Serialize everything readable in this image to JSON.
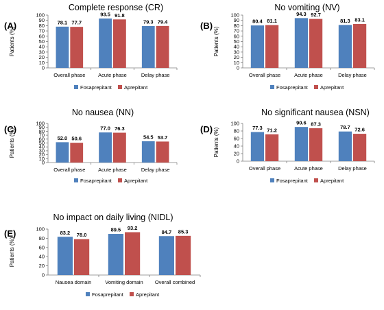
{
  "colors": {
    "fosaprepitant": "#4f81bd",
    "aprepitant": "#c0504d",
    "axis": "#7f7f7f"
  },
  "chart_data": [
    {
      "type": "bar",
      "panel": "(A)",
      "title": "Complete response (CR)",
      "ylabel": "Patients (%)",
      "ylim": [
        0,
        100
      ],
      "yticks": [
        0,
        10,
        20,
        30,
        40,
        50,
        60,
        70,
        80,
        90,
        100
      ],
      "categories": [
        "Overall phase",
        "Acute phase",
        "Delay phase"
      ],
      "series": [
        {
          "name": "Fosaprepitant",
          "values": [
            78.1,
            93.5,
            79.3
          ],
          "labels": [
            "78.1",
            "93.5",
            "79.3"
          ]
        },
        {
          "name": "Aprepitant",
          "values": [
            77.7,
            91.8,
            79.4
          ],
          "labels": [
            "77.7",
            "91.8",
            "79.4"
          ]
        }
      ],
      "legend": "bottom"
    },
    {
      "type": "bar",
      "panel": "(B)",
      "title": "No vomiting (NV)",
      "ylabel": "Patients (%)",
      "ylim": [
        0,
        100
      ],
      "yticks": [
        0,
        10,
        20,
        30,
        40,
        50,
        60,
        70,
        80,
        90,
        100
      ],
      "categories": [
        "Overall phase",
        "Acute phase",
        "Delay phase"
      ],
      "series": [
        {
          "name": "Fosaprepitant",
          "values": [
            80.4,
            94.3,
            81.3
          ],
          "labels": [
            "80.4",
            "94.3",
            "81.3"
          ]
        },
        {
          "name": "Aprepitant",
          "values": [
            81.1,
            92.7,
            83.1
          ],
          "labels": [
            "81.1",
            "92.7",
            "83.1"
          ]
        }
      ],
      "legend": "bottom"
    },
    {
      "type": "bar",
      "panel": "(C)",
      "title": "No nausea (NN)",
      "ylabel": "Patients (%)",
      "ylim": [
        0,
        100
      ],
      "yticks": [
        0,
        10,
        20,
        30,
        40,
        50,
        60,
        70,
        80,
        90,
        100
      ],
      "categories": [
        "Overall phase",
        "Acute phase",
        "Delay phase"
      ],
      "series": [
        {
          "name": "Fosaprepitant",
          "values": [
            52.0,
            77.0,
            54.5
          ],
          "labels": [
            "52.0",
            "77.0",
            "54.5"
          ]
        },
        {
          "name": "Aprepitant",
          "values": [
            50.6,
            76.3,
            53.7
          ],
          "labels": [
            "50.6",
            "76.3",
            "53.7"
          ]
        }
      ],
      "legend": "bottom"
    },
    {
      "type": "bar",
      "panel": "(D)",
      "title": "No significant nausea (NSN)",
      "ylabel": "Patients (%)",
      "ylim": [
        0,
        100
      ],
      "yticks": [
        0,
        20,
        40,
        60,
        80,
        100
      ],
      "categories": [
        "Overall phase",
        "Acute phase",
        "Delay phase"
      ],
      "series": [
        {
          "name": "Fosaprepitant",
          "values": [
            77.3,
            90.6,
            78.7
          ],
          "labels": [
            "77.3",
            "90.6",
            "78.7"
          ]
        },
        {
          "name": "Aprepitant",
          "values": [
            71.2,
            87.3,
            72.6
          ],
          "labels": [
            "71.2",
            "87.3",
            "72.6"
          ]
        }
      ],
      "legend": "bottom"
    },
    {
      "type": "bar",
      "panel": "(E)",
      "title": "No impact on daily living (NIDL)",
      "ylabel": "Patients (%)",
      "ylim": [
        0,
        100
      ],
      "yticks": [
        0,
        20,
        40,
        60,
        80,
        100
      ],
      "categories": [
        "Nausea domain",
        "Vomiting domain",
        "Overall combined"
      ],
      "series": [
        {
          "name": "Fosaprepitant",
          "values": [
            83.2,
            89.5,
            84.7
          ],
          "labels": [
            "83.2",
            "89.5",
            "84.7"
          ]
        },
        {
          "name": "Aprepitant",
          "values": [
            78.0,
            93.2,
            85.3
          ],
          "labels": [
            "78.0",
            "93.2",
            "85.3"
          ]
        }
      ],
      "legend": "bottom"
    }
  ]
}
